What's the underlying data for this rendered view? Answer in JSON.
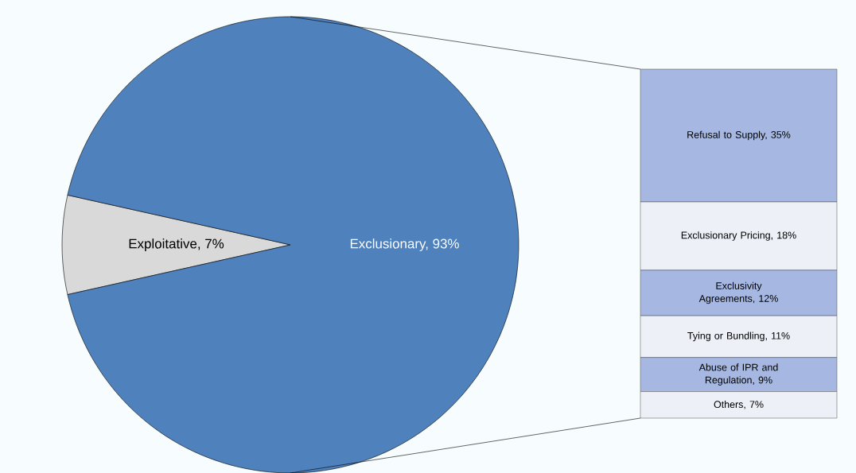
{
  "chart_data": [
    {
      "type": "pie",
      "categories": [
        "Exploitative, 7%",
        "Exclusionary, 93%"
      ],
      "values": [
        7,
        93
      ],
      "colors": [
        "#d9d9d9",
        "#4f81bd"
      ]
    },
    {
      "type": "bar",
      "stacked": true,
      "categories": [
        null
      ],
      "series": [
        {
          "color": "#eef0f8",
          "values": [
            7
          ],
          "value_labels": [
            "Others, 7%"
          ]
        },
        {
          "color": "#a6b8e2",
          "values": [
            9
          ],
          "value_labels": [
            "Abuse of IPR and Regulation, 9%"
          ]
        },
        {
          "color": "#eef0f8",
          "values": [
            11
          ],
          "value_labels": [
            "Tying or Bundling, 11%"
          ]
        },
        {
          "color": "#a6b8e2",
          "values": [
            12
          ],
          "value_labels": [
            "Exclusivity Agreements, 12%"
          ]
        },
        {
          "color": "#eef0f8",
          "values": [
            18
          ],
          "value_labels": [
            "Exclusionary Pricing, 18%"
          ]
        },
        {
          "color": "#a6b8e2",
          "values": [
            35
          ],
          "value_labels": [
            "Refusal to Supply, 35%"
          ]
        }
      ]
    }
  ]
}
